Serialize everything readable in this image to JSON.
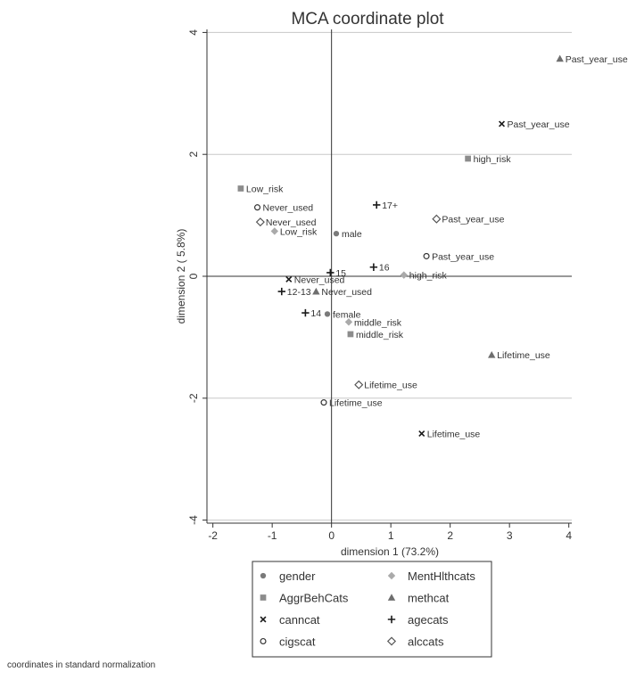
{
  "chart_data": {
    "type": "scatter",
    "title": "MCA coordinate plot",
    "xlabel": "dimension 1 (73.2%)",
    "ylabel": "dimension 2 ( 5.8%)",
    "xlim": [
      -2.1,
      4.05
    ],
    "ylim": [
      -4.05,
      4.05
    ],
    "xticks": [
      -2,
      -1,
      0,
      1,
      2,
      3,
      4
    ],
    "yticks": [
      -4,
      -2,
      0,
      2,
      4
    ],
    "grid": "horizontal",
    "reference_lines": {
      "x": 0,
      "y": 0
    },
    "legend_position": "bottom",
    "note": "coordinates in standard normalization",
    "series": [
      {
        "name": "gender",
        "marker": "circle-filled",
        "color": "#7a7a7a",
        "points": [
          {
            "label": "male",
            "x": 0.08,
            "y": 0.7
          },
          {
            "label": "female",
            "x": -0.07,
            "y": -0.62
          }
        ]
      },
      {
        "name": "AggrBehCats",
        "marker": "square-filled",
        "color": "#8c8c8c",
        "points": [
          {
            "label": "Low_risk",
            "x": -1.53,
            "y": 1.44
          },
          {
            "label": "high_risk",
            "x": 2.3,
            "y": 1.93
          },
          {
            "label": "middle_risk",
            "x": 0.32,
            "y": -0.95
          }
        ]
      },
      {
        "name": "canncat",
        "marker": "x",
        "color": "#1a1a1a",
        "points": [
          {
            "label": "Past_year_use",
            "x": 2.87,
            "y": 2.5
          },
          {
            "label": "Never_used",
            "x": -0.72,
            "y": -0.05
          },
          {
            "label": "Lifetime_use",
            "x": 1.52,
            "y": -2.58
          }
        ]
      },
      {
        "name": "cigscat",
        "marker": "circle-open",
        "color": "#333333",
        "points": [
          {
            "label": "Never_used",
            "x": -1.25,
            "y": 1.13
          },
          {
            "label": "Past_year_use",
            "x": 1.6,
            "y": 0.33
          },
          {
            "label": "Lifetime_use",
            "x": -0.13,
            "y": -2.07
          }
        ]
      },
      {
        "name": "MentHlthcats",
        "marker": "diamond-filled",
        "color": "#aaaaaa",
        "points": [
          {
            "label": "Low_risk",
            "x": -0.96,
            "y": 0.74
          },
          {
            "label": "high_risk",
            "x": 1.22,
            "y": 0.02
          },
          {
            "label": "middle_risk",
            "x": 0.29,
            "y": -0.75
          }
        ]
      },
      {
        "name": "methcat",
        "marker": "triangle-filled",
        "color": "#6e6e6e",
        "points": [
          {
            "label": "Past_year_use",
            "x": 3.85,
            "y": 3.57
          },
          {
            "label": "Never_used",
            "x": -0.26,
            "y": -0.25
          },
          {
            "label": "Lifetime_use",
            "x": 2.7,
            "y": -1.29
          }
        ]
      },
      {
        "name": "agecats",
        "marker": "plus",
        "color": "#1a1a1a",
        "points": [
          {
            "label": "17+",
            "x": 0.76,
            "y": 1.17
          },
          {
            "label": "16",
            "x": 0.71,
            "y": 0.15
          },
          {
            "label": "15",
            "x": -0.02,
            "y": 0.06
          },
          {
            "label": "12-13",
            "x": -0.84,
            "y": -0.25
          },
          {
            "label": "14",
            "x": -0.44,
            "y": -0.6
          }
        ]
      },
      {
        "name": "alccats",
        "marker": "diamond-open",
        "color": "#555555",
        "points": [
          {
            "label": "Never_used",
            "x": -1.2,
            "y": 0.89
          },
          {
            "label": "Past_year_use",
            "x": 1.77,
            "y": 0.94
          },
          {
            "label": "Lifetime_use",
            "x": 0.46,
            "y": -1.78
          }
        ]
      }
    ],
    "legend_order": [
      "gender",
      "MentHlthcats",
      "AggrBehCats",
      "methcat",
      "canncat",
      "agecats",
      "cigscat",
      "alccats"
    ]
  }
}
